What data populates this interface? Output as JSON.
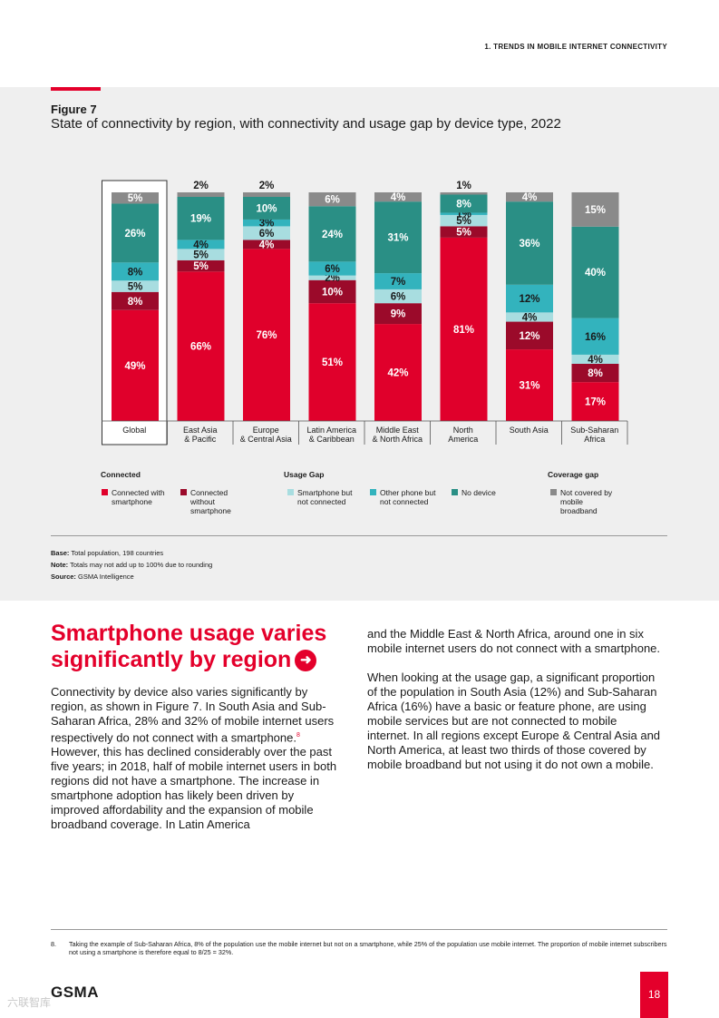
{
  "header": {
    "section": "1. TRENDS IN MOBILE INTERNET CONNECTIVITY"
  },
  "figure": {
    "label": "Figure 7",
    "title": "State of connectivity by region, with connectivity and usage gap by device type, 2022"
  },
  "colors": {
    "connected_smartphone": "#e0002b",
    "connected_without_smartphone": "#9b0a2a",
    "smartphone_not_connected": "#a8dde0",
    "other_phone_not_connected": "#33b3bd",
    "no_device": "#2a8f85",
    "not_covered": "#8a8a8a"
  },
  "chart_data": {
    "type": "bar",
    "stacked": true,
    "categories": [
      "Global",
      "East Asia\n& Pacific",
      "Europe\n& Central Asia",
      "Latin America\n& Caribbean",
      "Middle East\n& North Africa",
      "North\nAmerica",
      "South Asia",
      "Sub-Saharan\nAfrica"
    ],
    "series": [
      {
        "name": "Connected with smartphone",
        "values": [
          49,
          66,
          76,
          51,
          42,
          81,
          31,
          17
        ]
      },
      {
        "name": "Connected without smartphone",
        "values": [
          8,
          5,
          4,
          10,
          9,
          5,
          12,
          8
        ]
      },
      {
        "name": "Smartphone but not connected",
        "values": [
          5,
          5,
          6,
          2,
          6,
          5,
          4,
          4
        ]
      },
      {
        "name": "Other phone but not connected",
        "values": [
          8,
          4,
          3,
          6,
          7,
          1,
          12,
          16
        ]
      },
      {
        "name": "No device",
        "values": [
          26,
          19,
          10,
          24,
          31,
          8,
          36,
          40
        ]
      },
      {
        "name": "Not covered by mobile broadband",
        "values": [
          5,
          2,
          2,
          6,
          4,
          1,
          4,
          15
        ]
      }
    ],
    "ylim": [
      0,
      100
    ],
    "highlight_category": "Global"
  },
  "legend": {
    "connected_head": "Connected",
    "usage_head": "Usage Gap",
    "coverage_head": "Coverage gap",
    "items": [
      "Connected with smartphone",
      "Connected without smartphone",
      "Smartphone but not connected",
      "Other phone but not connected",
      "No device",
      "Not covered by mobile broadband"
    ]
  },
  "notes": {
    "base_label": "Base:",
    "base": "Total population, 198 countries",
    "note_label": "Note:",
    "note": "Totals may not add up to 100% due to rounding",
    "source_label": "Source:",
    "source": "GSMA Intelligence"
  },
  "article": {
    "heading": "Smartphone usage varies significantly by region",
    "left_para_1": "Connectivity by device also varies significantly by region, as shown in Figure 7. In South Asia and Sub-Saharan Africa, 28% and 32% of mobile internet users respectively do not connect with a smartphone.",
    "footnote_ref": "8",
    "left_para_1b": " However, this has declined considerably over the past five years; in 2018, half of mobile internet users in both regions did not have a smartphone. The increase in smartphone adoption has likely been driven by improved affordability and the expansion of mobile broadband coverage. In Latin America",
    "right_para_1": "and the Middle East & North Africa, around one in six mobile internet users do not connect with a smartphone.",
    "right_para_2": "When looking at the usage gap, a significant proportion of the population in South Asia (12%) and Sub-Saharan Africa (16%) have a basic or feature phone, are using mobile services but are not connected to mobile internet. In all regions except Europe & Central Asia and North America, at least two thirds of those covered by mobile broadband but not using it do not own a mobile."
  },
  "footnote": {
    "number": "8.",
    "text": "Taking the example of Sub-Saharan Africa, 8% of the population use the mobile internet but not on a smartphone, while 25% of the population use mobile internet. The proportion of mobile internet subscribers not using a smartphone is therefore equal to 8/25 = 32%."
  },
  "footer": {
    "brand": "GSMA",
    "page": "18",
    "watermark": "六联智库"
  }
}
